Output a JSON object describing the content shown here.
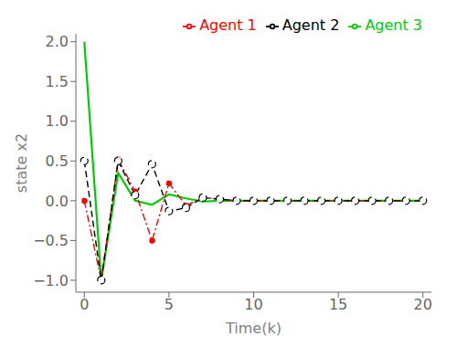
{
  "chart_data": {
    "type": "line",
    "xlabel": "Time(k)",
    "ylabel": "state x2",
    "x": [
      0,
      1,
      2,
      3,
      4,
      5,
      6,
      7,
      8,
      9,
      10,
      11,
      12,
      13,
      14,
      15,
      16,
      17,
      18,
      19,
      20
    ],
    "series": [
      {
        "name": "Agent 3",
        "color": "#00cc00",
        "line_style": "solid",
        "marker": "none",
        "values": [
          2.0,
          -1.0,
          0.35,
          0.0,
          -0.05,
          0.08,
          0.03,
          -0.01,
          0.0,
          0.0,
          0.0,
          0.0,
          0.0,
          0.0,
          0.0,
          0.0,
          0.0,
          0.0,
          0.0,
          0.0,
          0.0
        ]
      },
      {
        "name": "Agent 1",
        "color": "red",
        "line_style": "dashdot",
        "marker": "circle",
        "values": [
          0.0,
          -1.0,
          0.52,
          0.12,
          -0.5,
          0.22,
          -0.06,
          0.04,
          0.02,
          0.0,
          0.0,
          0.0,
          0.0,
          0.0,
          0.0,
          0.0,
          0.0,
          0.0,
          0.0,
          0.0,
          0.0
        ]
      },
      {
        "name": "Agent 2",
        "color": "black",
        "line_style": "dashed",
        "marker": "open_circle",
        "values": [
          0.5,
          -1.0,
          0.5,
          0.07,
          0.46,
          -0.13,
          -0.09,
          0.04,
          0.02,
          0.0,
          0.0,
          0.0,
          0.0,
          0.0,
          0.0,
          0.0,
          0.0,
          0.0,
          0.0,
          0.0,
          0.0
        ]
      }
    ],
    "xlim": [
      -0.5,
      20.5
    ],
    "ylim": [
      -1.15,
      2.1
    ],
    "xticks": [
      0,
      5,
      10,
      15,
      20
    ],
    "yticks": [
      {
        "value": -1.0,
        "label": "−1.0"
      },
      {
        "value": -0.5,
        "label": "−0.5"
      },
      {
        "value": 0.0,
        "label": "0.0"
      },
      {
        "value": 0.5,
        "label": "0.5"
      },
      {
        "value": 1.0,
        "label": "1.0"
      },
      {
        "value": 1.5,
        "label": "1.5"
      },
      {
        "value": 2.0,
        "label": "2.0"
      }
    ],
    "grid": false,
    "legend": "upper right"
  }
}
